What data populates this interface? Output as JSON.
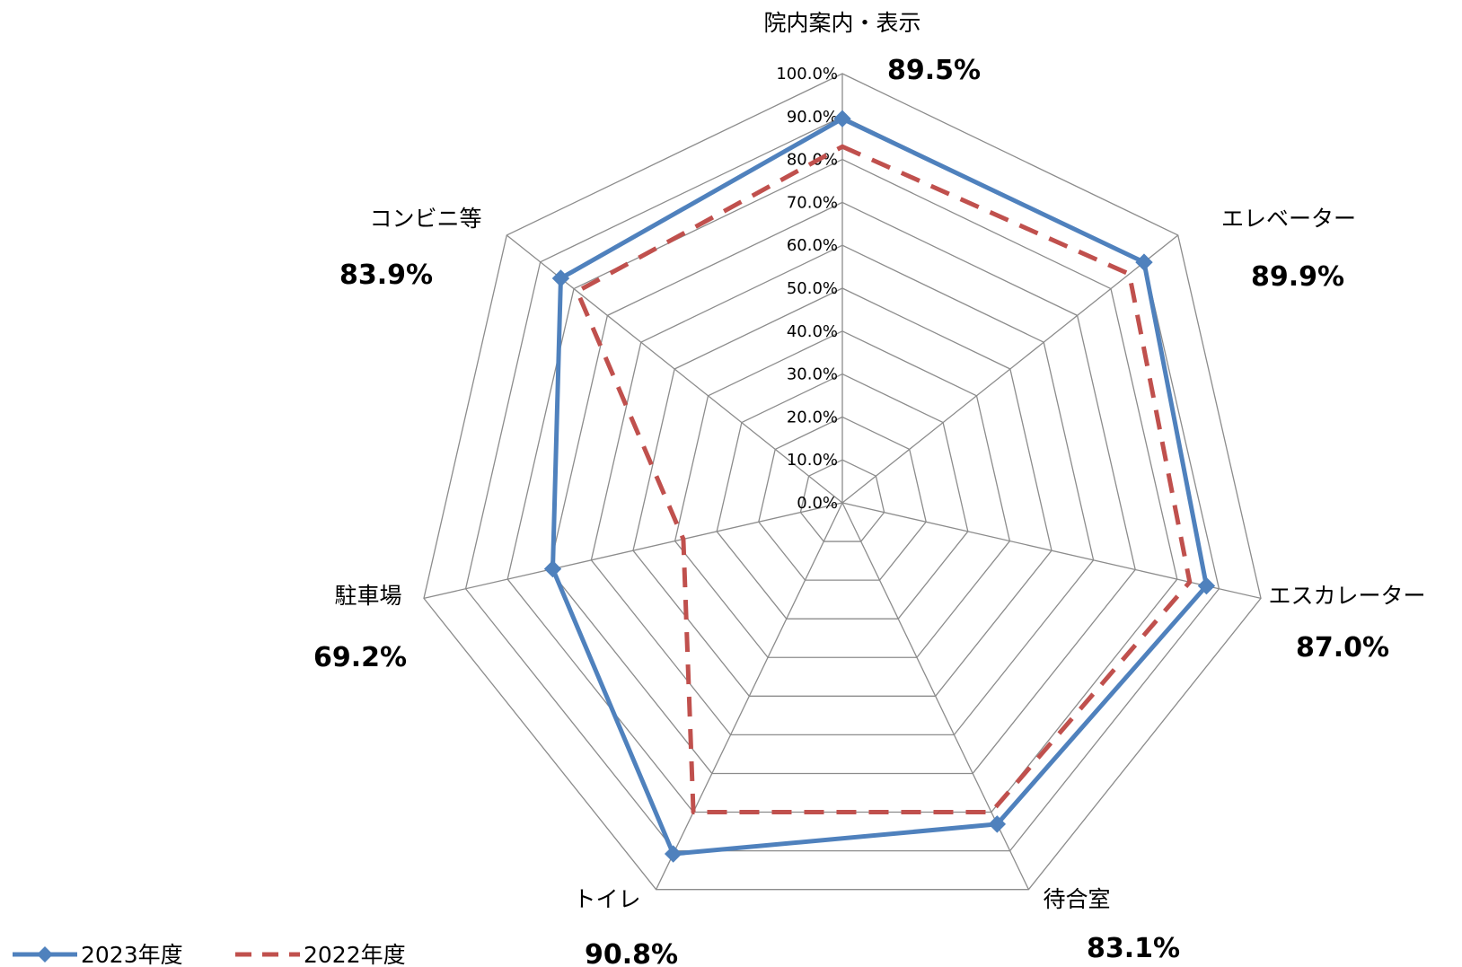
{
  "chart_data": {
    "type": "radar",
    "categories": [
      "院内案内・表示",
      "エレベーター",
      "エスカレーター",
      "待合室",
      "トイレ",
      "駐車場",
      "コンビニ等"
    ],
    "value_labels": [
      "89.5%",
      "89.9%",
      "87.0%",
      "83.1%",
      "90.8%",
      "69.2%",
      "83.9%"
    ],
    "series": [
      {
        "name": "2023年度",
        "values": [
          89.5,
          89.9,
          87.0,
          83.1,
          90.8,
          69.2,
          83.9
        ],
        "color": "#4F81BD",
        "style": "solid",
        "marker": "diamond"
      },
      {
        "name": "2022年度",
        "values": [
          83.0,
          85.5,
          83.0,
          80.0,
          80.0,
          38.0,
          79.0
        ],
        "color": "#C0504D",
        "style": "dashed",
        "marker": "none"
      }
    ],
    "range": [
      0,
      100
    ],
    "tick_labels": [
      "0.0%",
      "10.0%",
      "20.0%",
      "30.0%",
      "40.0%",
      "50.0%",
      "60.0%",
      "70.0%",
      "80.0%",
      "90.0%",
      "100.0%"
    ],
    "grid": true,
    "grid_color": "#8C8C8C",
    "legend_position": "bottom-left"
  }
}
